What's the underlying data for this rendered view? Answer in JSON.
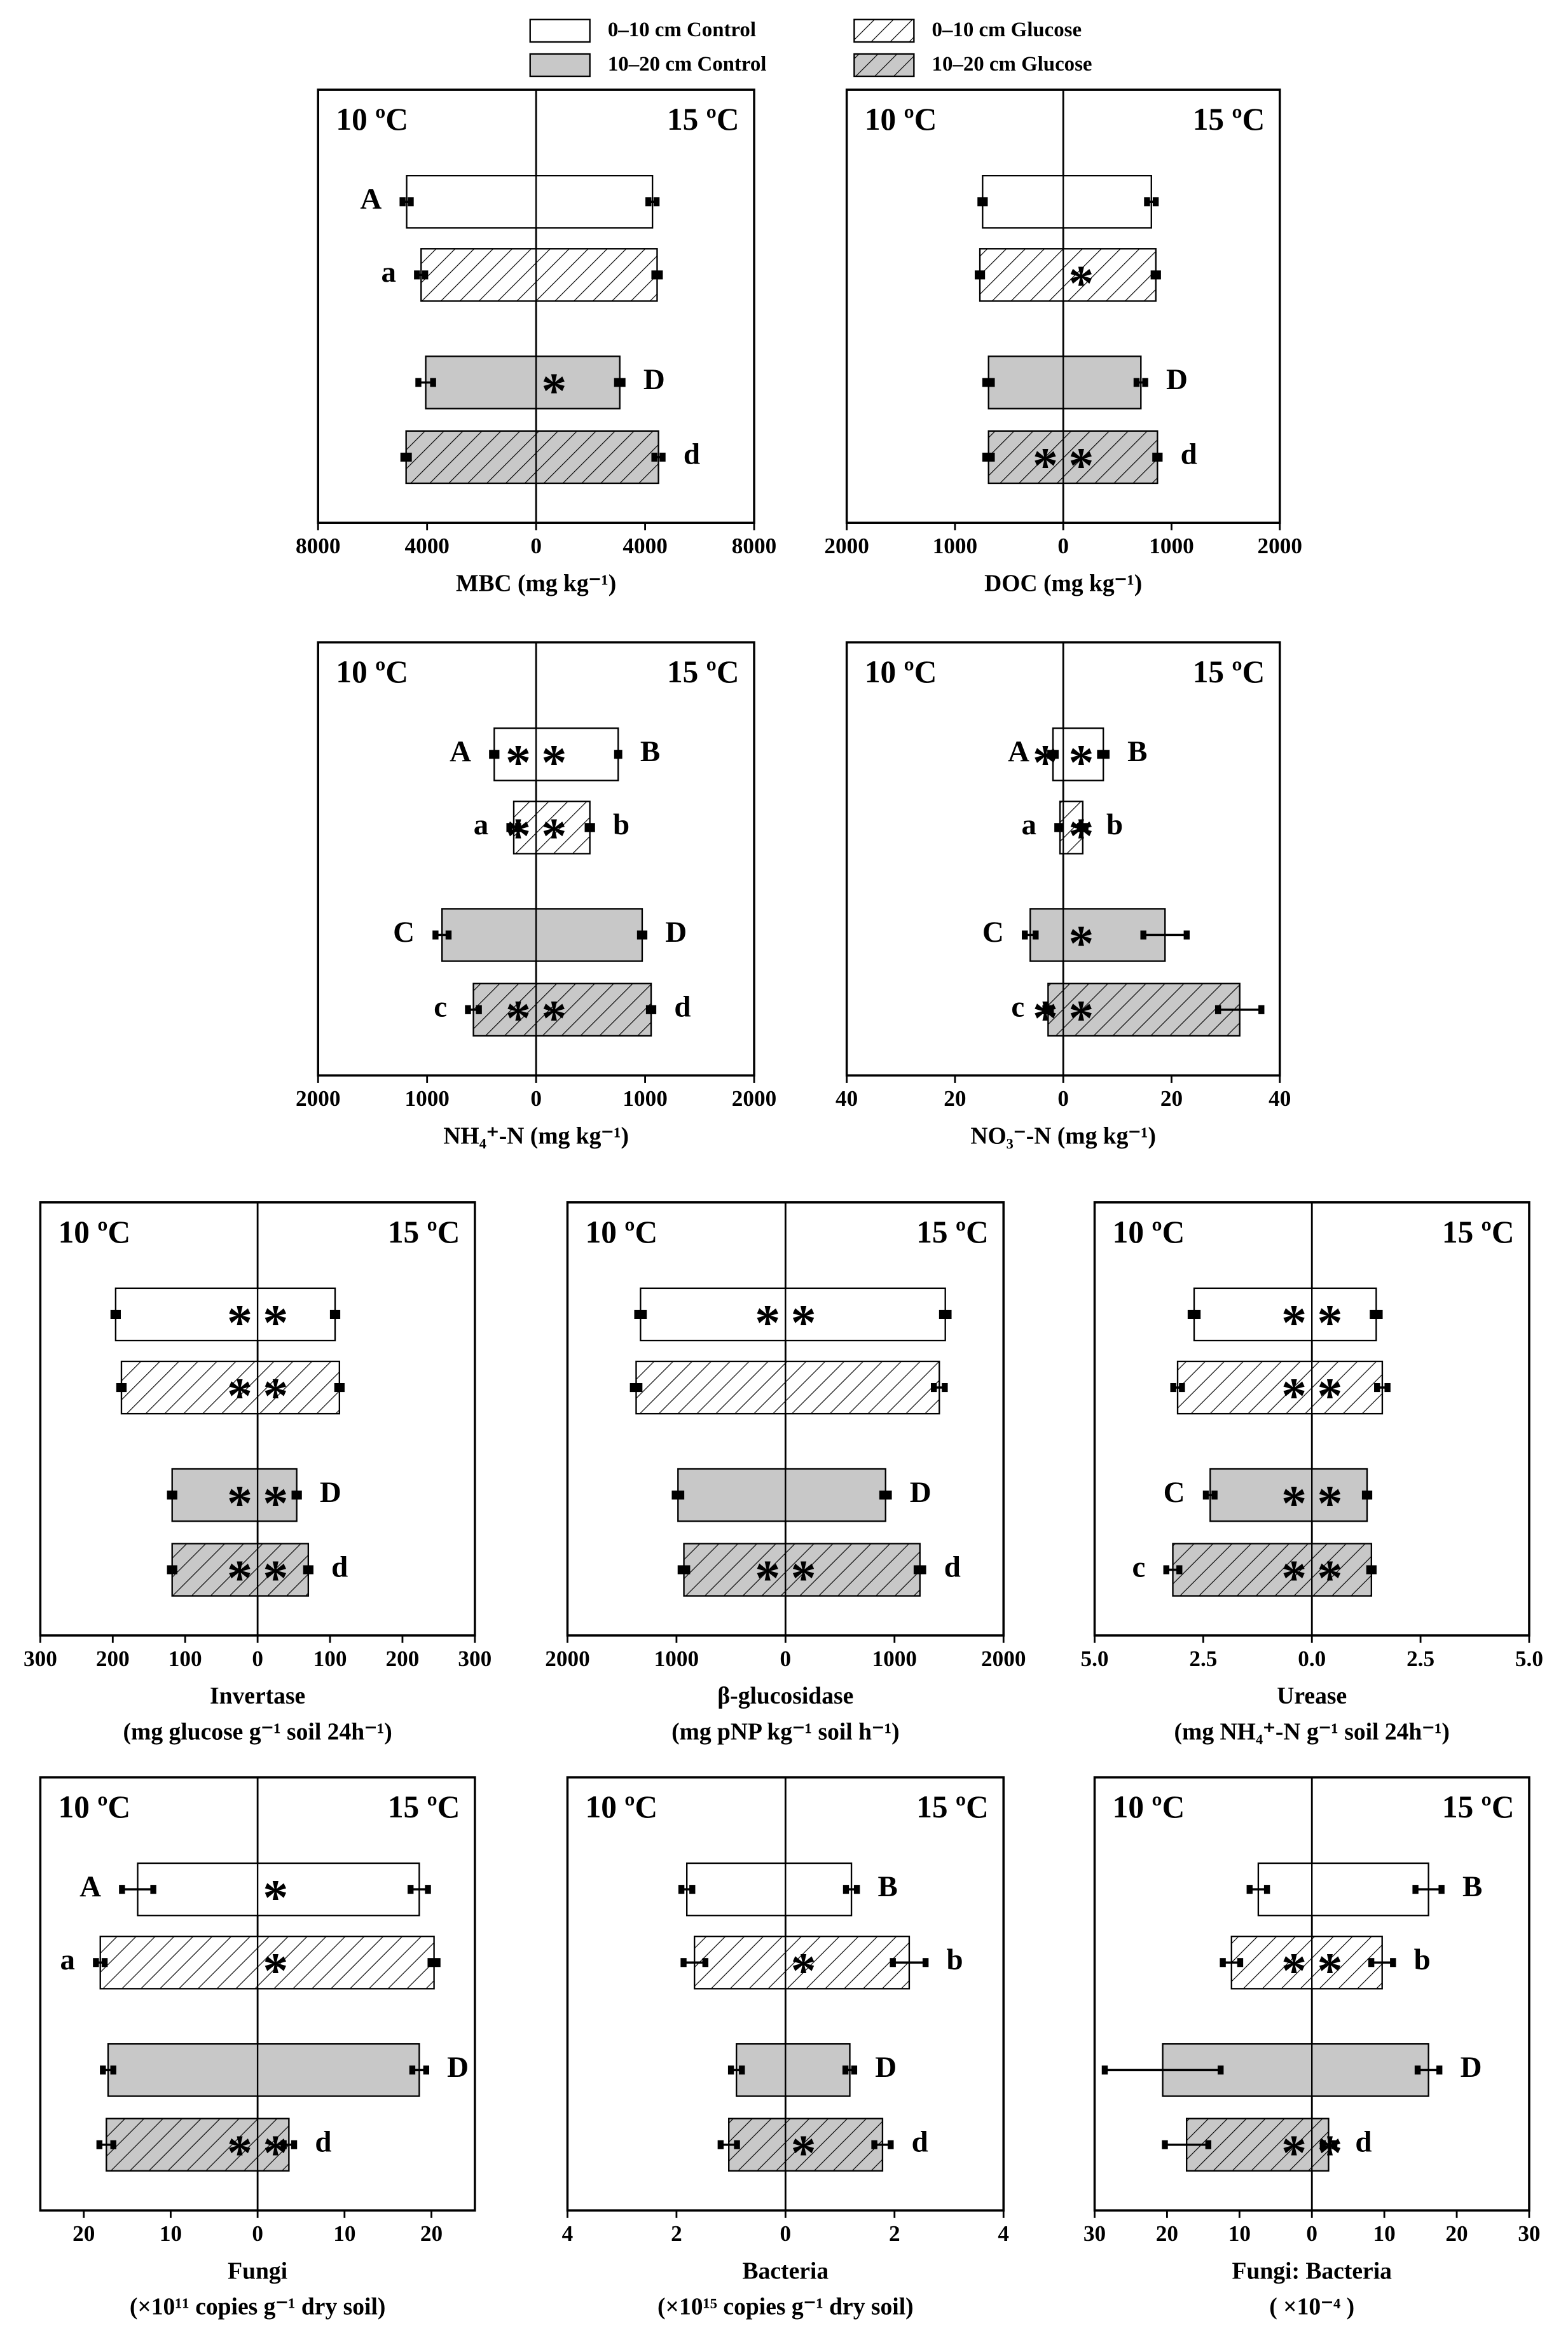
{
  "legend": {
    "entries": [
      {
        "name": "0–10 cm Control",
        "color": "#ffffff",
        "hatch": false
      },
      {
        "name": "0–10 cm Glucose",
        "color": "#ffffff",
        "hatch": true
      },
      {
        "name": "10–20 cm Control",
        "color": "#c8c8c8",
        "hatch": false
      },
      {
        "name": "10–20 cm Glucose",
        "color": "#c8c8c8",
        "hatch": true
      }
    ]
  },
  "chart_data": [
    {
      "type": "diverging-bar",
      "left_title": "10 ºC",
      "right_title": "15 ºC",
      "xlabel": "MBC (mg  kg⁻¹)",
      "xlim": [
        -8000,
        8000
      ],
      "xticks": [
        {
          "value": -8000,
          "label": "8000"
        },
        {
          "value": -4000,
          "label": "4000"
        },
        0,
        4000,
        8000
      ],
      "series": [
        {
          "values": [
            -4750,
            4270
          ],
          "errors": [
            150,
            150
          ],
          "letters": [
            "A",
            null
          ],
          "asterisks": [
            null,
            null
          ]
        },
        {
          "values": [
            -4220,
            4440
          ],
          "errors": [
            150,
            100
          ],
          "letters": [
            "a",
            null
          ],
          "asterisks": [
            null,
            null
          ]
        },
        {
          "values": [
            -4050,
            3070
          ],
          "errors": [
            270,
            100
          ],
          "letters": [
            null,
            "D"
          ],
          "asterisks": [
            null,
            "*"
          ]
        },
        {
          "values": [
            -4770,
            4490
          ],
          "errors": [
            100,
            150
          ],
          "letters": [
            null,
            "d"
          ],
          "asterisks": [
            null,
            null
          ]
        }
      ]
    },
    {
      "type": "diverging-bar",
      "left_title": "10 ºC",
      "right_title": "15 ºC",
      "xlabel": "DOC (mg  kg⁻¹)",
      "xlim": [
        -2000,
        2000
      ],
      "xticks": [
        {
          "value": -2000,
          "label": "2000"
        },
        {
          "value": -1000,
          "label": "1000"
        },
        0,
        1000,
        2000
      ],
      "series": [
        {
          "values": [
            -745,
            814
          ],
          "errors": [
            20,
            40
          ],
          "letters": [
            null,
            null
          ],
          "asterisks": [
            null,
            null
          ]
        },
        {
          "values": [
            -770,
            855
          ],
          "errors": [
            20,
            20
          ],
          "letters": [
            null,
            null
          ],
          "asterisks": [
            null,
            "*"
          ]
        },
        {
          "values": [
            -690,
            717
          ],
          "errors": [
            30,
            40
          ],
          "letters": [
            null,
            "D"
          ],
          "asterisks": [
            null,
            null
          ]
        },
        {
          "values": [
            -690,
            870
          ],
          "errors": [
            30,
            20
          ],
          "letters": [
            null,
            "d"
          ],
          "asterisks": [
            "*",
            "*"
          ]
        }
      ]
    },
    {
      "type": "diverging-bar",
      "left_title": "10 ºC",
      "right_title": "15 ºC",
      "xlabel": "NH₄⁺-N (mg  kg⁻¹)",
      "xlim": [
        -2000,
        2000
      ],
      "xticks": [
        {
          "value": -2000,
          "label": "2000"
        },
        {
          "value": -1000,
          "label": "1000"
        },
        0,
        1000,
        2000
      ],
      "series": [
        {
          "values": [
            -384,
            753
          ],
          "errors": [
            20,
            10
          ],
          "letters": [
            "A",
            "B"
          ],
          "asterisks": [
            "*",
            "*"
          ]
        },
        {
          "values": [
            -205,
            493
          ],
          "errors": [
            40,
            20
          ],
          "letters": [
            "a",
            "b"
          ],
          "asterisks": [
            "*",
            "*"
          ]
        },
        {
          "values": [
            -863,
            973
          ],
          "errors": [
            60,
            20
          ],
          "letters": [
            "C",
            "D"
          ],
          "asterisks": [
            null,
            null
          ]
        },
        {
          "values": [
            -575,
            1055
          ],
          "errors": [
            50,
            20
          ],
          "letters": [
            "c",
            "d"
          ],
          "asterisks": [
            "*",
            "*"
          ]
        }
      ]
    },
    {
      "type": "diverging-bar",
      "left_title": "10 ºC",
      "right_title": "15 ºC",
      "xlabel": "NO₃⁻-N (mg  kg⁻¹)",
      "xlim": [
        -40,
        40
      ],
      "xticks": [
        {
          "value": -40,
          "label": "40"
        },
        {
          "value": -20,
          "label": "20"
        },
        0,
        20,
        40
      ],
      "series": [
        {
          "values": [
            -1.9,
            7.4
          ],
          "errors": [
            0.5,
            0.6
          ],
          "letters": [
            "A",
            "B"
          ],
          "asterisks": [
            "*",
            "*"
          ]
        },
        {
          "values": [
            -0.6,
            3.6
          ],
          "errors": [
            0.5,
            0.5
          ],
          "letters": [
            "a",
            "b"
          ],
          "asterisks": [
            null,
            "*"
          ]
        },
        {
          "values": [
            -6.1,
            18.8
          ],
          "errors": [
            1.0,
            4.0
          ],
          "letters": [
            "C",
            null
          ],
          "asterisks": [
            null,
            "*"
          ]
        },
        {
          "values": [
            -2.8,
            32.6
          ],
          "errors": [
            0.5,
            4.0
          ],
          "letters": [
            "c",
            null
          ],
          "asterisks": [
            "*",
            "*"
          ]
        }
      ]
    },
    {
      "type": "diverging-bar",
      "left_title": "10 ºC",
      "right_title": "15 ºC",
      "xlabel": "Invertase",
      "xlabel_unit": "(mg  glucose g⁻¹ soil 24h⁻¹)",
      "xlim": [
        -300,
        300
      ],
      "xticks": [
        {
          "value": -300,
          "label": "300"
        },
        {
          "value": -200,
          "label": "200"
        },
        {
          "value": -100,
          "label": "100"
        },
        0,
        100,
        200,
        300
      ],
      "series": [
        {
          "values": [
            -196,
            107
          ],
          "errors": [
            3,
            3
          ],
          "letters": [
            null,
            null
          ],
          "asterisks": [
            "*",
            "*"
          ]
        },
        {
          "values": [
            -188,
            113
          ],
          "errors": [
            3,
            3
          ],
          "letters": [
            null,
            null
          ],
          "asterisks": [
            "*",
            "*"
          ]
        },
        {
          "values": [
            -118,
            54
          ],
          "errors": [
            3,
            3
          ],
          "letters": [
            null,
            "D"
          ],
          "asterisks": [
            "*",
            "*"
          ]
        },
        {
          "values": [
            -118,
            70
          ],
          "errors": [
            3,
            3
          ],
          "letters": [
            null,
            "d"
          ],
          "asterisks": [
            "*",
            "*"
          ]
        }
      ]
    },
    {
      "type": "diverging-bar",
      "left_title": "10 ºC",
      "right_title": "15 ºC",
      "xlabel": "β-glucosidase",
      "xlabel_unit": "(mg pNP kg⁻¹  soil h⁻¹)",
      "xlim": [
        -2000,
        2000
      ],
      "xticks": [
        {
          "value": -2000,
          "label": "2000"
        },
        {
          "value": -1000,
          "label": "1000"
        },
        0,
        1000,
        2000
      ],
      "series": [
        {
          "values": [
            -1330,
            1466
          ],
          "errors": [
            30,
            30
          ],
          "letters": [
            null,
            null
          ],
          "asterisks": [
            "*",
            "*"
          ]
        },
        {
          "values": [
            -1370,
            1411
          ],
          "errors": [
            30,
            50
          ],
          "letters": [
            null,
            null
          ],
          "asterisks": [
            null,
            null
          ]
        },
        {
          "values": [
            -986,
            918
          ],
          "errors": [
            30,
            30
          ],
          "letters": [
            null,
            "D"
          ],
          "asterisks": [
            null,
            null
          ]
        },
        {
          "values": [
            -932,
            1233
          ],
          "errors": [
            30,
            30
          ],
          "letters": [
            null,
            "d"
          ],
          "asterisks": [
            "*",
            "*"
          ]
        }
      ]
    },
    {
      "type": "diverging-bar",
      "left_title": "10 ºC",
      "right_title": "15 ºC",
      "xlabel": "Urease",
      "xlabel_unit": "(mg NH₄⁺-N  g⁻¹ soil  24h⁻¹)",
      "xlim": [
        -5,
        5
      ],
      "xticks": [
        {
          "value": -5,
          "label": "5.0"
        },
        {
          "value": -2.5,
          "label": "2.5"
        },
        {
          "value": 0,
          "label": "0.0"
        },
        2.5,
        {
          "value": 5,
          "label": "5.0"
        }
      ],
      "series": [
        {
          "values": [
            -2.71,
            1.48
          ],
          "errors": [
            0.08,
            0.08
          ],
          "letters": [
            null,
            null
          ],
          "asterisks": [
            "*",
            "*"
          ]
        },
        {
          "values": [
            -3.09,
            1.62
          ],
          "errors": [
            0.1,
            0.12
          ],
          "letters": [
            null,
            null
          ],
          "asterisks": [
            "*",
            "*"
          ]
        },
        {
          "values": [
            -2.34,
            1.27
          ],
          "errors": [
            0.1,
            0.05
          ],
          "letters": [
            "C",
            null
          ],
          "asterisks": [
            "*",
            "*"
          ]
        },
        {
          "values": [
            -3.2,
            1.37
          ],
          "errors": [
            0.15,
            0.05
          ],
          "letters": [
            "c",
            null
          ],
          "asterisks": [
            "*",
            "*"
          ]
        }
      ]
    },
    {
      "type": "diverging-bar",
      "left_title": "10 ºC",
      "right_title": "15 ºC",
      "xlabel": "Fungi",
      "xlabel_unit": "(×10¹¹ copies g⁻¹ dry soil)",
      "xlim": [
        -25,
        25
      ],
      "xticks": [
        {
          "value": -20,
          "label": "20"
        },
        {
          "value": -10,
          "label": "10"
        },
        0,
        10,
        20
      ],
      "series": [
        {
          "values": [
            -13.8,
            18.6
          ],
          "errors": [
            1.8,
            1.0
          ],
          "letters": [
            "A",
            null
          ],
          "asterisks": [
            null,
            "*"
          ]
        },
        {
          "values": [
            -18.1,
            20.3
          ],
          "errors": [
            0.5,
            0.4
          ],
          "letters": [
            "a",
            null
          ],
          "asterisks": [
            null,
            "*"
          ]
        },
        {
          "values": [
            -17.2,
            18.6
          ],
          "errors": [
            0.6,
            0.8
          ],
          "letters": [
            null,
            "D"
          ],
          "asterisks": [
            null,
            null
          ]
        },
        {
          "values": [
            -17.4,
            3.6
          ],
          "errors": [
            0.8,
            0.6
          ],
          "letters": [
            null,
            "d"
          ],
          "asterisks": [
            "*",
            "*"
          ]
        }
      ]
    },
    {
      "type": "diverging-bar",
      "left_title": "10 ºC",
      "right_title": "15 ºC",
      "xlabel": "Bacteria",
      "xlabel_unit": "(×10¹⁵ copies g⁻¹ dry soil)",
      "xlim": [
        -4,
        4
      ],
      "xticks": [
        {
          "value": -4,
          "label": "4"
        },
        {
          "value": -2,
          "label": "2"
        },
        0,
        2,
        4
      ],
      "series": [
        {
          "values": [
            -1.81,
            1.21
          ],
          "errors": [
            0.1,
            0.1
          ],
          "letters": [
            null,
            "B"
          ],
          "asterisks": [
            null,
            null
          ]
        },
        {
          "values": [
            -1.67,
            2.27
          ],
          "errors": [
            0.2,
            0.3
          ],
          "letters": [
            null,
            "b"
          ],
          "asterisks": [
            null,
            "*"
          ]
        },
        {
          "values": [
            -0.9,
            1.18
          ],
          "errors": [
            0.1,
            0.08
          ],
          "letters": [
            null,
            "D"
          ],
          "asterisks": [
            null,
            null
          ]
        },
        {
          "values": [
            -1.04,
            1.78
          ],
          "errors": [
            0.15,
            0.15
          ],
          "letters": [
            null,
            "d"
          ],
          "asterisks": [
            null,
            "*"
          ]
        }
      ]
    },
    {
      "type": "diverging-bar",
      "left_title": "10 ºC",
      "right_title": "15 ºC",
      "xlabel": "Fungi: Bacteria",
      "xlabel_unit": "( ×10⁻⁴ )",
      "xlim": [
        -30,
        30
      ],
      "xticks": [
        {
          "value": -30,
          "label": "30"
        },
        {
          "value": -20,
          "label": "20"
        },
        {
          "value": -10,
          "label": "10"
        },
        0,
        10,
        20,
        30
      ],
      "series": [
        {
          "values": [
            -7.4,
            16.1
          ],
          "errors": [
            1.2,
            1.8
          ],
          "letters": [
            null,
            "B"
          ],
          "asterisks": [
            null,
            null
          ]
        },
        {
          "values": [
            -11.1,
            9.7
          ],
          "errors": [
            1.2,
            1.5
          ],
          "letters": [
            null,
            "b"
          ],
          "asterisks": [
            "*",
            "*"
          ]
        },
        {
          "values": [
            -20.6,
            16.1
          ],
          "errors": [
            8.0,
            1.5
          ],
          "letters": [
            null,
            "D"
          ],
          "asterisks": [
            null,
            null
          ]
        },
        {
          "values": [
            -17.3,
            2.3
          ],
          "errors": [
            3.0,
            0.8
          ],
          "letters": [
            null,
            "d"
          ],
          "asterisks": [
            "*",
            "*"
          ]
        }
      ]
    }
  ]
}
